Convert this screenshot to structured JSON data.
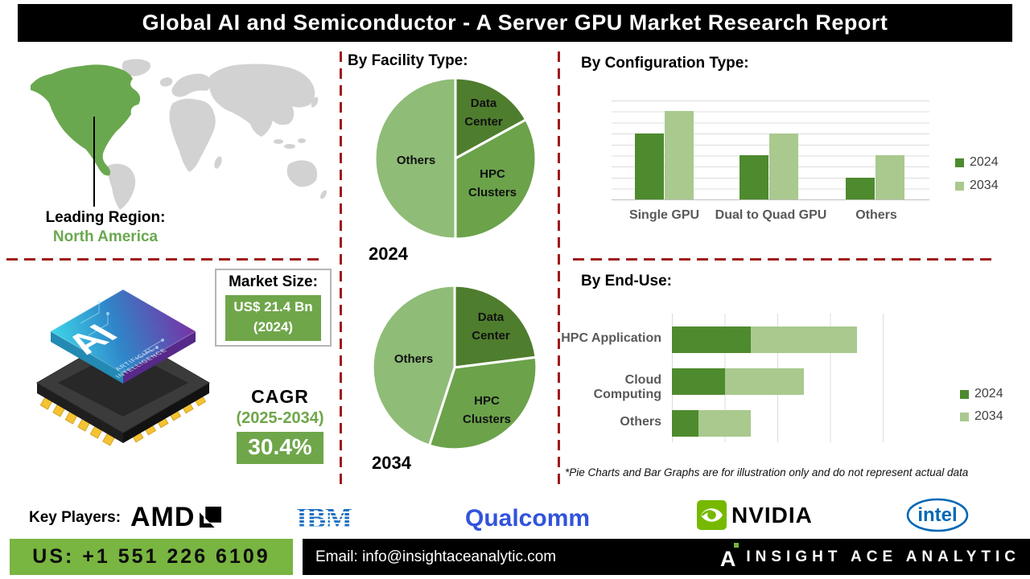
{
  "header": {
    "title": "Global AI and Semiconductor - A Server GPU Market Research Report"
  },
  "map": {
    "leading_label": "Leading Region:",
    "region": "North America"
  },
  "market_size": {
    "label": "Market Size:",
    "value": "US$ 21.4 Bn",
    "year": "(2024)"
  },
  "cagr": {
    "label": "CAGR",
    "period": "(2025-2034)",
    "value": "30.4%"
  },
  "chip": {
    "ai": "AI",
    "line1": "ARTIFICIAL",
    "line2": "INTELLIGENCE"
  },
  "chart_data": [
    {
      "type": "pie",
      "title": "By Facility Type:",
      "year": "2024",
      "segments": [
        {
          "label": "Data\nCenter",
          "value": 17,
          "color": "#4f7d2e"
        },
        {
          "label": "HPC\nClusters",
          "value": 33,
          "color": "#6ba24a"
        },
        {
          "label": "Others",
          "value": 50,
          "color": "#8fbc77"
        }
      ],
      "value_note": "illustrative percentages"
    },
    {
      "type": "pie",
      "title": "By Facility Type:",
      "year": "2034",
      "segments": [
        {
          "label": "Data\nCenter",
          "value": 23,
          "color": "#4f7d2e"
        },
        {
          "label": "HPC\nClusters",
          "value": 32,
          "color": "#6ba24a"
        },
        {
          "label": "Others",
          "value": 45,
          "color": "#8fbc77"
        }
      ],
      "value_note": "illustrative percentages"
    },
    {
      "type": "bar",
      "title": "By Configuration Type:",
      "categories": [
        "Single GPU",
        "Dual to Quad GPU",
        "Others"
      ],
      "series": [
        {
          "name": "2024",
          "color": "#4e8a2e",
          "values": [
            3,
            2,
            1
          ]
        },
        {
          "name": "2034",
          "color": "#a9c98e",
          "values": [
            4,
            3,
            2
          ]
        }
      ],
      "ylim": [
        0,
        4.5
      ],
      "grid": true,
      "legend_position": "right",
      "value_note": "relative illustrative units"
    },
    {
      "type": "bar-horizontal-stacked",
      "title": "By End-Use:",
      "categories": [
        "HPC Application",
        "Cloud Computing",
        "Others"
      ],
      "series": [
        {
          "name": "2024",
          "color": "#4e8a2e",
          "values": [
            3,
            2,
            1
          ]
        },
        {
          "name": "2034",
          "color": "#a9c98e",
          "values": [
            4,
            3,
            2
          ]
        }
      ],
      "grid": true,
      "legend_position": "right",
      "value_note": "relative illustrative units"
    }
  ],
  "disclaimer": "*Pie Charts and Bar Graphs are for illustration only and do not represent actual data",
  "key_players": {
    "label": "Key Players:",
    "companies": [
      "AMD",
      "IBM",
      "Qualcomm",
      "NVIDIA",
      "intel"
    ]
  },
  "footer": {
    "phone": "US: +1 551 226 6109",
    "email": "Email: info@insightaceanalytic.com",
    "brand": "INSIGHT ACE ANALYTIC"
  },
  "colors": {
    "accent_green": "#6fa64a",
    "phone_bar_green": "#79b541",
    "map_highlight": "#6aa84f",
    "map_land": "#d2d2d2",
    "dashed_divider": "#9e1a1c",
    "bar_2024": "#4e8a2e",
    "bar_2034": "#a9c98e",
    "pie_data_center": "#4f7d2e",
    "pie_hpc": "#6ba24a",
    "pie_others": "#8fbc77",
    "nvidia_green": "#76b900",
    "ibm_blue": "#1f70c1",
    "qualcomm_blue": "#3253dc",
    "intel_blue": "#0068b5"
  }
}
